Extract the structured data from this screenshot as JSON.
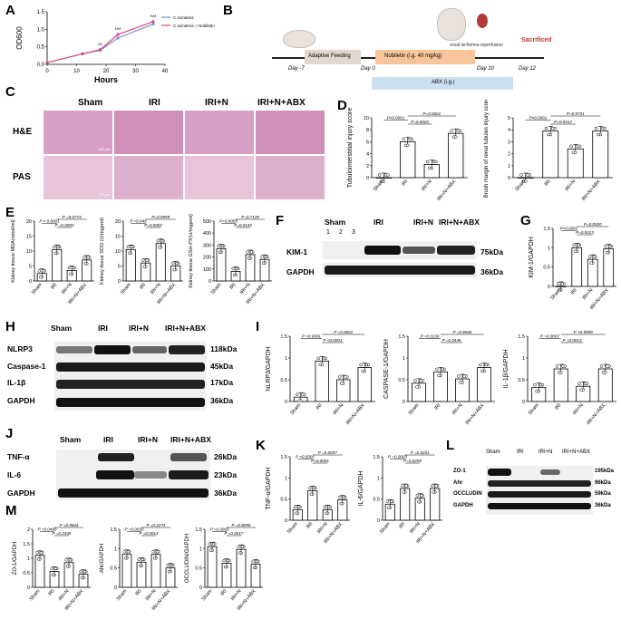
{
  "panels": {
    "A": "A",
    "B": "B",
    "C": "C",
    "D": "D",
    "E": "E",
    "F": "F",
    "G": "G",
    "H": "H",
    "I": "I",
    "J": "J",
    "K": "K",
    "L": "L",
    "M": "M"
  },
  "panel_a": {
    "ylabel": "OD600",
    "xlabel": "Hours",
    "legend": [
      "C.scindens",
      "C.scindens + Nobiletin"
    ],
    "sig": [
      "**",
      "***",
      "***"
    ],
    "colors": {
      "s1": "#7b8fd6",
      "s2": "#d64b78"
    }
  },
  "panel_b": {
    "days": [
      "Day -7",
      "Day 0",
      "Day 10",
      "Day 12"
    ],
    "feeding": "Adaptive Feeding",
    "drug": "Nobiletin (i.g. 40 mg/kg)",
    "abx": "ABX (i.g.)",
    "ischemia": "renal ischemia-reperfusion",
    "sacrificed": "Sacrificed"
  },
  "panel_c": {
    "groups": [
      "Sham",
      "IRI",
      "IRI+N",
      "IRI+N+ABX"
    ],
    "rows": [
      "H&E",
      "PAS"
    ],
    "scale": "100 μm"
  },
  "groups4": [
    "Sham",
    "IRI",
    "IRI+N",
    "IRI+N+ABX"
  ],
  "panel_d": {
    "charts": [
      {
        "ylabel": "Tubulointerstitial injury score",
        "p": [
          "P<0.0001",
          "P=0.0020",
          "P=0.0601"
        ]
      },
      {
        "ylabel": "Brush margin of renal tubules injury score",
        "p": [
          "P<0.0001",
          "P=0.0012",
          "P=0.9731"
        ]
      }
    ]
  },
  "panel_e": {
    "charts": [
      {
        "ylabel": "Kidney tissue MDA(nmol/ml)",
        "p": [
          "P < 0.0001",
          "P =0.0002",
          "P =0.0774"
        ]
      },
      {
        "ylabel": "Kidney tissue SOD (U/mgprot)",
        "p": [
          "P =0.046",
          "P=0.0002",
          "P=0.9999"
        ]
      },
      {
        "ylabel": "Kidney tissue GSH-PX(U/mgprot)",
        "p": [
          "P=0.0005",
          "P=0.0145",
          "P=0.7139"
        ]
      }
    ]
  },
  "panel_f": {
    "groups": [
      "Sham",
      "IRI",
      "IRI+N",
      "IRI+N+ABX"
    ],
    "lanes": [
      "1",
      "2",
      "3"
    ],
    "proteins": [
      "KIM-1",
      "GAPDH"
    ],
    "kda": [
      "75kDa",
      "36kDa"
    ]
  },
  "panel_g": {
    "ylabel": "KIM-1/GAPDH",
    "p": [
      "P<0.0001",
      "P=0.0013",
      "P=0.0920"
    ]
  },
  "panel_h": {
    "proteins": [
      "NLRP3",
      "Caspase-1",
      "IL-1β",
      "GAPDH"
    ],
    "kda": [
      "118kDa",
      "45kDa",
      "17kDa",
      "36kDa"
    ]
  },
  "panel_i": {
    "charts": [
      {
        "ylabel": "NLRP3/GAPDH",
        "p": [
          "P <0.0001",
          "P <0.0001",
          "P =0.0001"
        ]
      },
      {
        "ylabel": "CASPASE-1/GAPDH",
        "p": [
          "P =0.0130",
          "P =0.0445",
          "P =0.8566"
        ]
      },
      {
        "ylabel": "IL-1β/GAPDH",
        "p": [
          "P =0.0007",
          "P =0.0013",
          "P >0.9999"
        ]
      }
    ]
  },
  "panel_j": {
    "proteins": [
      "TNF-α",
      "IL-6",
      "GAPDH"
    ],
    "kda": [
      "26kDa",
      "23kDa",
      "36kDa"
    ]
  },
  "panel_k": {
    "charts": [
      {
        "ylabel": "TNF-α/GAPDH",
        "p": [
          "P <0.0001",
          "P<0.0001",
          "P =0.0057"
        ]
      },
      {
        "ylabel": "IL-6/GAPDH",
        "p": [
          "P =0.0003",
          "P=0.0209",
          "P =0.0201"
        ]
      }
    ]
  },
  "panel_l": {
    "proteins": [
      "ZO-1",
      "Ahr",
      "OCCLUDIN",
      "GAPDH"
    ],
    "kda": [
      "195kDa",
      "96kDa",
      "59kDa",
      "36kDa"
    ]
  },
  "panel_m": {
    "charts": [
      {
        "ylabel": "ZO-1/GAPDH",
        "p": [
          "P =0.0499",
          "P =0.2345",
          "P =0.9664"
        ]
      },
      {
        "ylabel": "Ahr/GAPDH",
        "p": [
          "P =0.0030",
          "P =0.0014",
          "P =0.2274"
        ]
      },
      {
        "ylabel": "OCCLUDIN/GAPDH",
        "p": [
          "P =0.0069",
          "P =0.0017",
          "P =0.8096"
        ]
      }
    ]
  },
  "chart_data": [
    {
      "id": "A",
      "type": "line",
      "xlabel": "Hours",
      "ylabel": "OD600",
      "x": [
        0,
        12,
        18,
        24,
        36
      ],
      "xlim": [
        0,
        40
      ],
      "ylim": [
        0,
        1.5
      ],
      "xticks": [
        0,
        10,
        20,
        30,
        40
      ],
      "yticks": [
        0.0,
        0.5,
        1.0,
        1.5
      ],
      "series": [
        {
          "name": "C.scindens",
          "values": [
            0.05,
            0.3,
            0.4,
            0.75,
            1.15
          ]
        },
        {
          "name": "C.scindens + Nobiletin",
          "values": [
            0.05,
            0.3,
            0.42,
            0.85,
            1.22
          ]
        }
      ]
    },
    {
      "id": "D1",
      "type": "bar",
      "categories": [
        "Sham",
        "IRI",
        "IRI+N",
        "IRI+N+ABX"
      ],
      "values": [
        0,
        6,
        2.2,
        7.4
      ],
      "ylim": [
        0,
        10
      ],
      "yticks": [
        0,
        2,
        4,
        6,
        8,
        10
      ]
    },
    {
      "id": "D2",
      "type": "bar",
      "categories": [
        "Sham",
        "IRI",
        "IRI+N",
        "IRI+N+ABX"
      ],
      "values": [
        0,
        3.9,
        2.4,
        3.9
      ],
      "ylim": [
        0,
        5
      ],
      "yticks": [
        0,
        1,
        2,
        3,
        4,
        5
      ]
    },
    {
      "id": "E1",
      "type": "bar",
      "categories": [
        "Sham",
        "IRI",
        "IRI+N",
        "IRI+N+ABX"
      ],
      "values": [
        2.5,
        10.5,
        3.5,
        7
      ],
      "ylim": [
        0,
        20
      ],
      "yticks": [
        0,
        5,
        10,
        15,
        20
      ]
    },
    {
      "id": "E2",
      "type": "bar",
      "categories": [
        "Sham",
        "IRI",
        "IRI+N",
        "IRI+N+ABX"
      ],
      "values": [
        10.5,
        6,
        12.5,
        5
      ],
      "ylim": [
        0,
        20
      ],
      "yticks": [
        0,
        5,
        10,
        15,
        20
      ]
    },
    {
      "id": "E3",
      "type": "bar",
      "categories": [
        "Sham",
        "IRI",
        "IRI+N",
        "IRI+N+ABX"
      ],
      "values": [
        270,
        80,
        220,
        180
      ],
      "ylim": [
        0,
        500
      ],
      "yticks": [
        0,
        100,
        200,
        300,
        400,
        500
      ]
    },
    {
      "id": "G",
      "type": "bar",
      "categories": [
        "Sham",
        "IRI",
        "IRI+N",
        "IRI+N+ABX"
      ],
      "values": [
        0,
        1.0,
        0.7,
        0.97
      ],
      "ylim": [
        0,
        1.5
      ],
      "yticks": [
        0.0,
        0.5,
        1.0,
        1.5
      ]
    },
    {
      "id": "I1",
      "type": "bar",
      "categories": [
        "Sham",
        "IRI",
        "IRI+N",
        "IRI+N+ABX"
      ],
      "values": [
        0.1,
        0.93,
        0.5,
        0.78
      ],
      "ylim": [
        0,
        1.5
      ],
      "yticks": [
        0.0,
        0.5,
        1.0,
        1.5
      ]
    },
    {
      "id": "I2",
      "type": "bar",
      "categories": [
        "Sham",
        "IRI",
        "IRI+N",
        "IRI+N+ABX"
      ],
      "values": [
        0.42,
        0.68,
        0.52,
        0.78
      ],
      "ylim": [
        0,
        1.5
      ],
      "yticks": [
        0.0,
        0.5,
        1.0,
        1.5
      ]
    },
    {
      "id": "I3",
      "type": "bar",
      "categories": [
        "Sham",
        "IRI",
        "IRI+N",
        "IRI+N+ABX"
      ],
      "values": [
        0.32,
        0.75,
        0.35,
        0.75
      ],
      "ylim": [
        0,
        1.5
      ],
      "yticks": [
        0.0,
        0.5,
        1.0,
        1.5
      ]
    },
    {
      "id": "K1",
      "type": "bar",
      "categories": [
        "Sham",
        "IRI",
        "IRI+N",
        "IRI+N+ABX"
      ],
      "values": [
        0.25,
        0.7,
        0.25,
        0.48
      ],
      "ylim": [
        0,
        1.5
      ],
      "yticks": [
        0.0,
        0.5,
        1.0,
        1.5
      ]
    },
    {
      "id": "K2",
      "type": "bar",
      "categories": [
        "Sham",
        "IRI",
        "IRI+N",
        "IRI+N+ABX"
      ],
      "values": [
        0.38,
        0.75,
        0.52,
        0.75
      ],
      "ylim": [
        0,
        1.5
      ],
      "yticks": [
        0.0,
        0.5,
        1.0,
        1.5
      ]
    },
    {
      "id": "M1",
      "type": "bar",
      "categories": [
        "Sham",
        "IRI",
        "IRI+N",
        "IRI+N+ABX"
      ],
      "values": [
        1.1,
        0.55,
        0.85,
        0.45
      ],
      "ylim": [
        0,
        2.0
      ],
      "yticks": [
        0.0,
        0.5,
        1.0,
        1.5,
        2.0
      ]
    },
    {
      "id": "M2",
      "type": "bar",
      "categories": [
        "Sham",
        "IRI",
        "IRI+N",
        "IRI+N+ABX"
      ],
      "values": [
        0.85,
        0.65,
        0.85,
        0.5
      ],
      "ylim": [
        0,
        1.5
      ],
      "yticks": [
        0.0,
        0.5,
        1.0,
        1.5
      ]
    },
    {
      "id": "M3",
      "type": "bar",
      "categories": [
        "Sham",
        "IRI",
        "IRI+N",
        "IRI+N+ABX"
      ],
      "values": [
        1.05,
        0.62,
        0.98,
        0.6
      ],
      "ylim": [
        0,
        1.5
      ],
      "yticks": [
        0.0,
        0.5,
        1.0,
        1.5
      ]
    }
  ]
}
